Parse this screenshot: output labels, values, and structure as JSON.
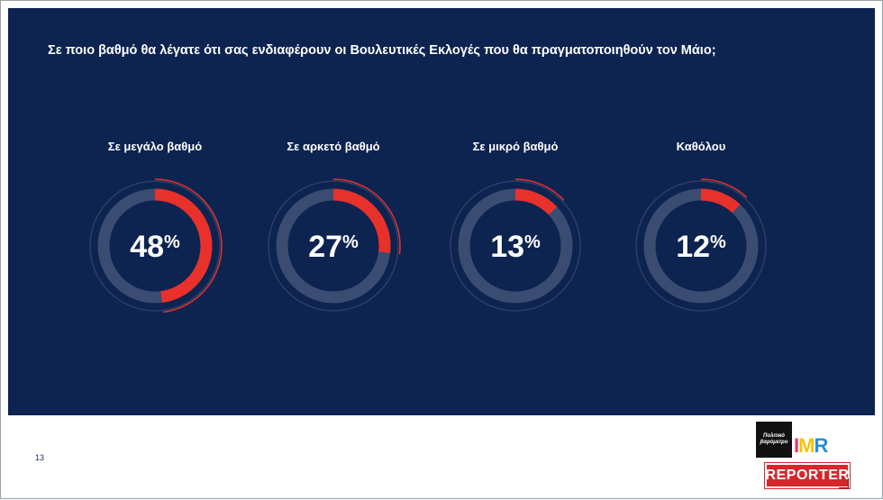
{
  "page": {
    "number": "13"
  },
  "chart_data": {
    "type": "donut",
    "title": "Σε ποιο βαθμό θα λέγατε ότι σας ενδιαφέρουν οι Βουλευτικές Εκλογές που θα πραγματοποιηθούν τον Μάιο;",
    "categories": [
      "Σε μεγάλο βαθμό",
      "Σε αρκετό βαθμό",
      "Σε μικρό βαθμό",
      "Καθόλου"
    ],
    "values": [
      48,
      27,
      13,
      12
    ],
    "unit": "%",
    "colors": {
      "filled": "#e8312a",
      "track": "#3a4c72",
      "outer_ring": "#e8312a",
      "background": "#0d2350"
    }
  },
  "logos": {
    "politiko_line1": "Πολιτικό",
    "politiko_line2": "βαρόμετρο",
    "imr_i": "I",
    "imr_m": "M",
    "imr_r": "R",
    "reporter": "REPORTER"
  }
}
